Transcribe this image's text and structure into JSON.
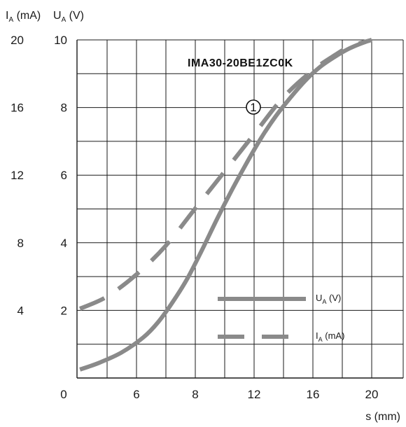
{
  "chart_data": {
    "type": "line",
    "title": "IMA30-20BE1ZC0K",
    "xlabel": "s (mm)",
    "y_left_outer_label": {
      "prefix": "I",
      "sub": "A",
      "suffix": " (mA)"
    },
    "y_left_inner_label": {
      "prefix": "U",
      "sub": "A",
      "suffix": " (V)"
    },
    "x_ticks": [
      "0",
      "6",
      "8",
      "12",
      "16",
      "20"
    ],
    "y_current_ticks": [
      "20",
      "16",
      "12",
      "8",
      "4"
    ],
    "y_voltage_ticks": [
      "10",
      "8",
      "6",
      "4",
      "2"
    ],
    "xlim": [
      0,
      20.5
    ],
    "ylim_voltage": [
      0,
      10
    ],
    "ylim_current": [
      0,
      20
    ],
    "grid": true,
    "legend_position": "bottom-right",
    "marker_label": "1",
    "series": [
      {
        "name": {
          "prefix": "U",
          "sub": "A",
          "suffix": " (V)"
        },
        "style": "solid",
        "axis": "voltage",
        "x": [
          0.2,
          1.5,
          3,
          4.5,
          5.5,
          6.5,
          7.5,
          8.5,
          9.5,
          10.5,
          11.5,
          12.5,
          13.5,
          14.5,
          15.5,
          16.5,
          17.5,
          18.5,
          19.5,
          20
        ],
        "y": [
          0.25,
          0.45,
          0.75,
          1.2,
          1.65,
          2.25,
          2.95,
          3.8,
          4.7,
          5.55,
          6.35,
          7.1,
          7.75,
          8.3,
          8.8,
          9.2,
          9.5,
          9.75,
          9.93,
          10
        ]
      },
      {
        "name": {
          "prefix": "I",
          "sub": "A",
          "suffix": " (mA)"
        },
        "style": "dashed",
        "axis": "voltage",
        "x": [
          0.2,
          2,
          4,
          6,
          8,
          10,
          12,
          14,
          16,
          17.5,
          18.5,
          20
        ],
        "y": [
          2.05,
          2.4,
          3.05,
          3.9,
          5,
          6.1,
          7.2,
          8.3,
          9.1,
          9.55,
          9.8,
          10
        ]
      }
    ]
  },
  "colors": {
    "curve": "#8a8a8a",
    "grid": "#1a1a1a",
    "text": "#1a1a1a"
  }
}
